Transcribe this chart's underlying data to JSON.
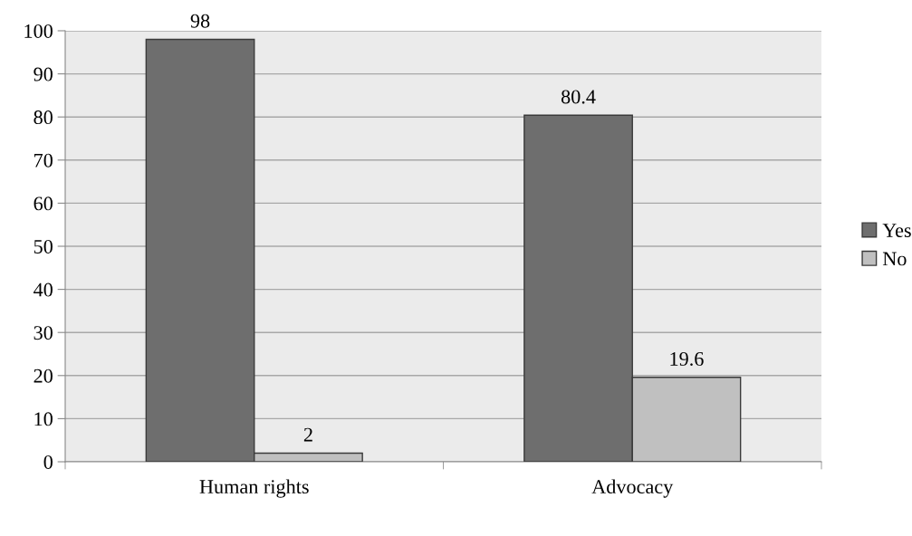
{
  "chart_data": {
    "type": "bar",
    "categories": [
      "Human rights",
      "Advocacy"
    ],
    "series": [
      {
        "name": "Yes",
        "color": "#6e6e6e",
        "values": [
          98,
          80.4
        ]
      },
      {
        "name": "No",
        "color": "#c0c0c0",
        "values": [
          2,
          19.6
        ]
      }
    ],
    "ylim": [
      0,
      100
    ],
    "yticks": [
      0,
      10,
      20,
      30,
      40,
      50,
      60,
      70,
      80,
      90,
      100
    ],
    "grid": "y",
    "legend": "right",
    "data_labels": true
  }
}
